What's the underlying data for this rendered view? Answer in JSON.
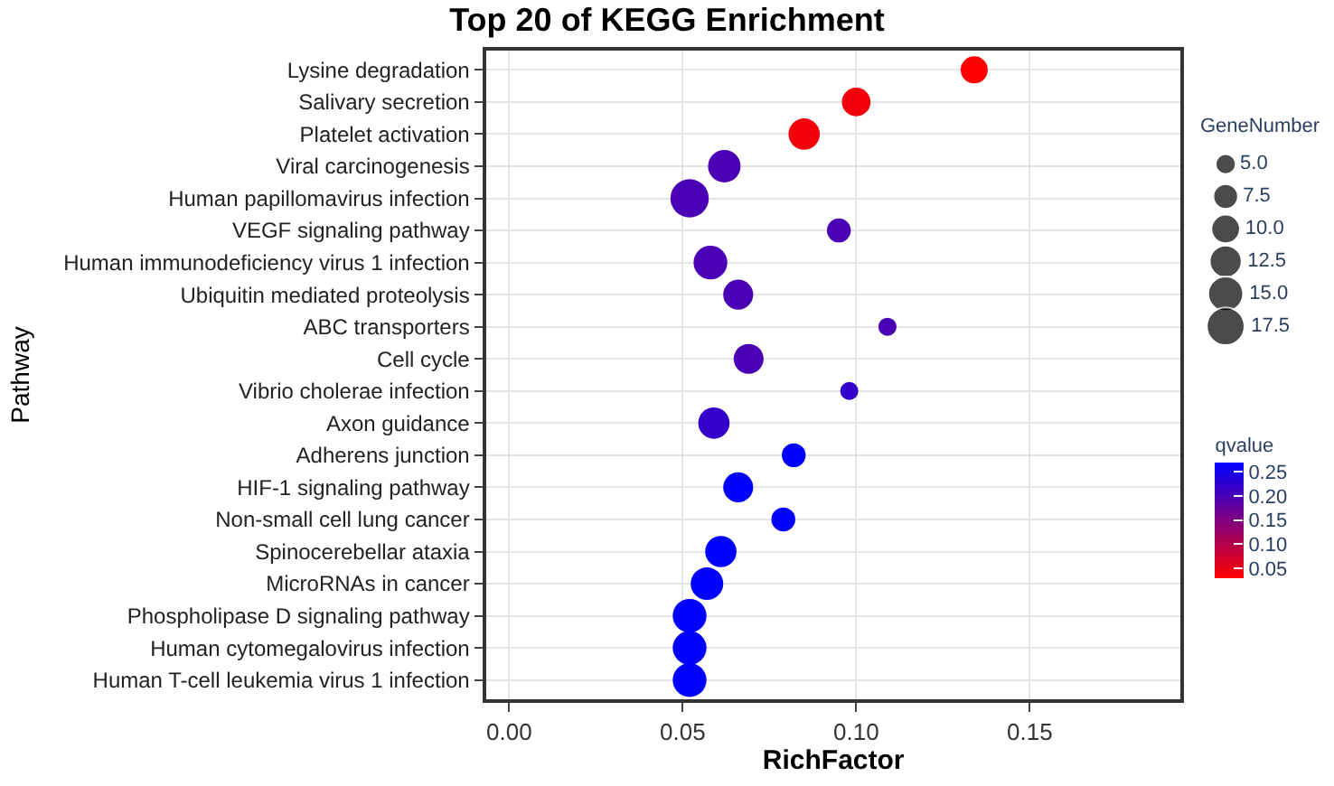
{
  "chart_data": {
    "type": "bubble",
    "title": "Top 20 of KEGG Enrichment",
    "xlabel": "RichFactor",
    "ylabel": "Pathway",
    "legend_title": "GeneNumber",
    "clabel": "qvalue",
    "categories": [
      "Lysine degradation",
      "Salivary secretion",
      "Platelet activation",
      "Viral carcinogenesis",
      "Human papillomavirus infection",
      "VEGF signaling pathway",
      "Human immunodeficiency virus 1 infection",
      "Ubiquitin mediated proteolysis",
      "ABC transporters",
      "Cell cycle",
      "Vibrio cholerae infection",
      "Axon guidance",
      "Adherens junction",
      "HIF-1 signaling pathway",
      "Non-small cell lung cancer",
      "Spinocerebellar ataxia",
      "MicroRNAs in cancer",
      "Phospholipase D signaling pathway",
      "Human cytomegalovirus infection",
      "Human T-cell leukemia virus 1 infection"
    ],
    "values": [
      0.134,
      0.1,
      0.085,
      0.062,
      0.052,
      0.095,
      0.058,
      0.066,
      0.109,
      0.069,
      0.098,
      0.059,
      0.082,
      0.066,
      0.079,
      0.061,
      0.057,
      0.052,
      0.052,
      0.052
    ],
    "sizes": [
      9,
      10,
      12,
      13,
      18,
      7,
      14,
      11,
      4,
      11,
      4,
      12,
      7,
      11,
      7,
      12,
      13,
      14,
      14,
      14
    ],
    "cvalues": [
      0.03,
      0.04,
      0.04,
      0.2,
      0.2,
      0.2,
      0.2,
      0.2,
      0.2,
      0.2,
      0.22,
      0.22,
      0.27,
      0.27,
      0.27,
      0.27,
      0.27,
      0.27,
      0.27,
      0.27
    ],
    "size_legend": [
      {
        "value": 5,
        "label": "5.0"
      },
      {
        "value": 7.5,
        "label": "7.5"
      },
      {
        "value": 10,
        "label": "10.0"
      },
      {
        "value": 12.5,
        "label": "12.5"
      },
      {
        "value": 15,
        "label": "15.0"
      },
      {
        "value": 17.5,
        "label": "17.5"
      }
    ],
    "orientation": "horizontal",
    "clim": [
      0.03,
      0.27
    ],
    "cticks": [
      {
        "value": 0.05,
        "label": "0.05"
      },
      {
        "value": 0.1,
        "label": "0.10"
      },
      {
        "value": 0.15,
        "label": "0.15"
      },
      {
        "value": 0.2,
        "label": "0.20"
      },
      {
        "value": 0.25,
        "label": "0.25"
      }
    ],
    "xlim": [
      -0.0066,
      0.1935
    ],
    "xticks": [
      {
        "value": 0,
        "label": "0.00"
      },
      {
        "value": 0.05,
        "label": "0.05"
      },
      {
        "value": 0.1,
        "label": "0.10"
      },
      {
        "value": 0.15,
        "label": "0.15"
      }
    ],
    "grid": true
  }
}
